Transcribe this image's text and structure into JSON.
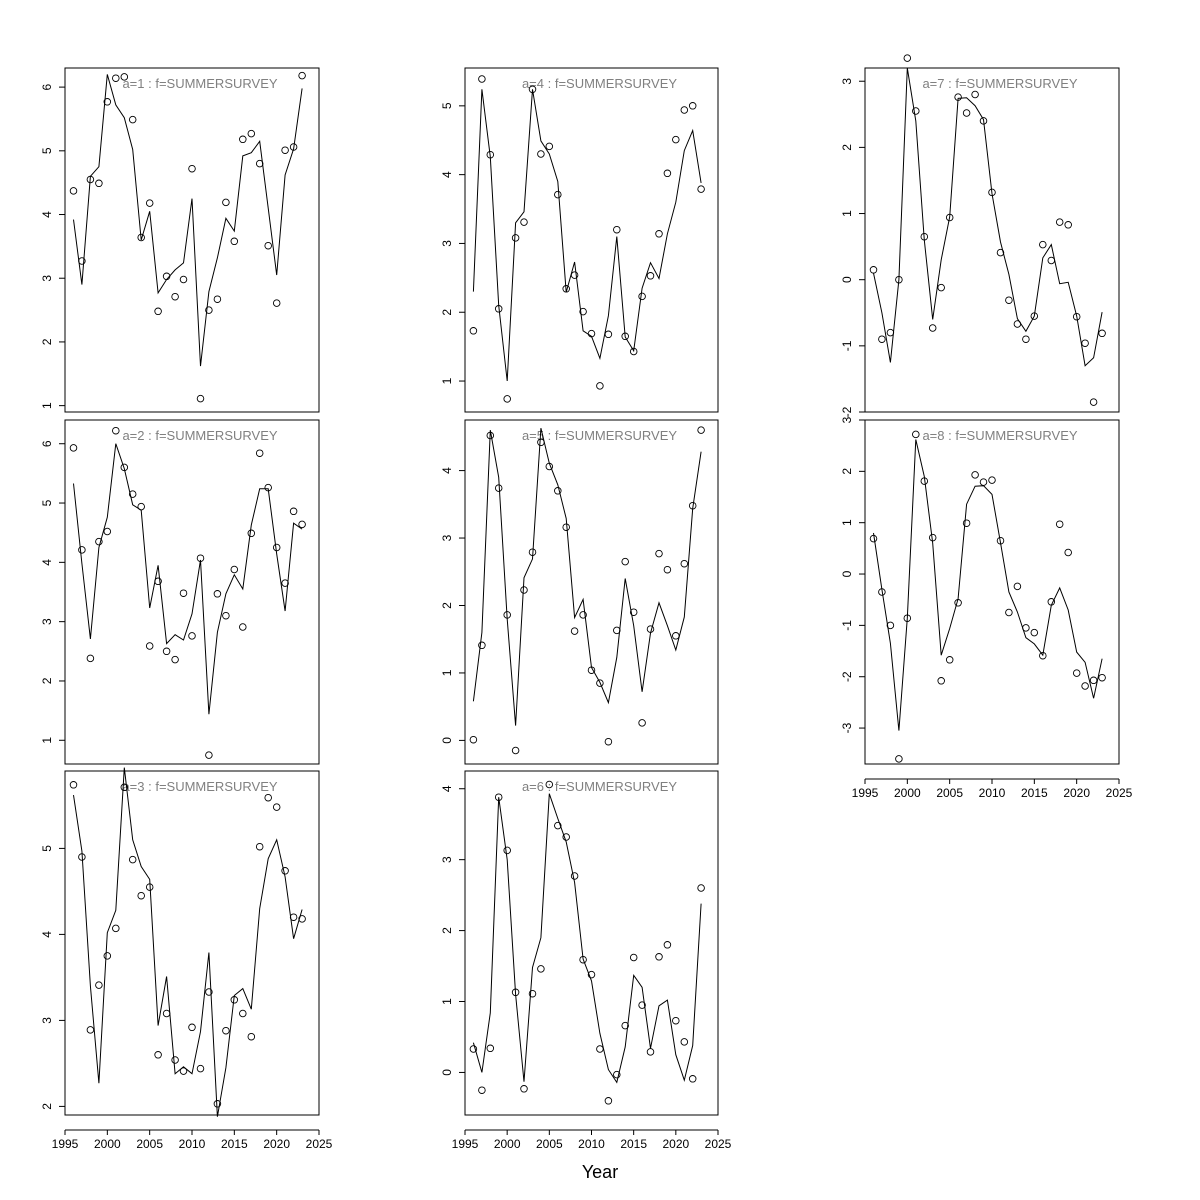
{
  "figure": {
    "xlabel": "Year",
    "colors": {
      "observed": "#000000",
      "fit": "#000000",
      "title": "#808080"
    }
  },
  "chart_data": [
    {
      "type": "scatter",
      "title": "a=1  :  f=SUMMERSURVEY",
      "x": [
        1996,
        1997,
        1998,
        1999,
        2000,
        2001,
        2002,
        2003,
        2004,
        2005,
        2006,
        2007,
        2008,
        2009,
        2010,
        2011,
        2012,
        2013,
        2014,
        2015,
        2016,
        2017,
        2018,
        2019,
        2020,
        2021,
        2022,
        2023
      ],
      "series": [
        {
          "type": "scatter",
          "values": [
            4.37,
            3.27,
            4.55,
            4.49,
            5.77,
            6.14,
            6.16,
            5.49,
            3.64,
            4.18,
            2.48,
            3.03,
            2.71,
            2.98,
            4.72,
            1.11,
            2.5,
            2.67,
            4.19,
            3.58,
            5.18,
            5.27,
            4.8,
            3.51,
            2.61,
            5.01,
            5.06,
            6.18
          ]
        },
        {
          "type": "line",
          "values": [
            3.92,
            2.9,
            4.6,
            4.75,
            6.2,
            5.72,
            5.52,
            5.02,
            3.6,
            4.05,
            2.77,
            2.98,
            3.13,
            3.24,
            4.25,
            1.62,
            2.79,
            3.32,
            3.94,
            3.74,
            4.92,
            4.97,
            5.15,
            4.1,
            3.05,
            4.62,
            5.03,
            5.98
          ]
        }
      ],
      "xlim": [
        1995,
        2025
      ],
      "ylim": [
        0.9,
        6.3
      ],
      "xticks": [
        1995,
        2000,
        2005,
        2010,
        2015,
        2020,
        2025
      ],
      "yticks": [
        1,
        2,
        3,
        4,
        5,
        6
      ],
      "grid": false
    },
    {
      "type": "scatter",
      "title": "a=2  :  f=SUMMERSURVEY",
      "x": [
        1996,
        1997,
        1998,
        1999,
        2000,
        2001,
        2002,
        2003,
        2004,
        2005,
        2006,
        2007,
        2008,
        2009,
        2010,
        2011,
        2012,
        2013,
        2014,
        2015,
        2016,
        2017,
        2018,
        2019,
        2020,
        2021,
        2022,
        2023
      ],
      "series": [
        {
          "type": "scatter",
          "values": [
            5.93,
            4.21,
            2.38,
            4.35,
            4.52,
            6.22,
            5.6,
            5.15,
            4.94,
            2.59,
            3.68,
            2.5,
            2.36,
            3.48,
            2.76,
            4.07,
            0.75,
            3.47,
            3.1,
            3.88,
            2.91,
            4.49,
            5.84,
            5.26,
            4.25,
            3.65,
            4.86,
            4.64
          ]
        },
        {
          "type": "line",
          "values": [
            5.33,
            3.98,
            2.71,
            4.25,
            4.76,
            6.0,
            5.58,
            4.97,
            4.88,
            3.23,
            3.95,
            2.63,
            2.78,
            2.69,
            3.13,
            4.04,
            1.44,
            2.82,
            3.47,
            3.79,
            3.55,
            4.63,
            5.24,
            5.24,
            4.14,
            3.18,
            4.66,
            4.56
          ]
        }
      ],
      "xlim": [
        1995,
        2025
      ],
      "ylim": [
        0.6,
        6.4
      ],
      "xticks": [
        1995,
        2000,
        2005,
        2010,
        2015,
        2020,
        2025
      ],
      "yticks": [
        1,
        2,
        3,
        4,
        5,
        6
      ],
      "grid": false
    },
    {
      "type": "scatter",
      "title": "a=3  :  f=SUMMERSURVEY",
      "x": [
        1996,
        1997,
        1998,
        1999,
        2000,
        2001,
        2002,
        2003,
        2004,
        2005,
        2006,
        2007,
        2008,
        2009,
        2010,
        2011,
        2012,
        2013,
        2014,
        2015,
        2016,
        2017,
        2018,
        2019,
        2020,
        2021,
        2022,
        2023
      ],
      "series": [
        {
          "type": "scatter",
          "values": [
            5.74,
            4.9,
            2.89,
            3.41,
            3.75,
            4.07,
            5.71,
            4.87,
            4.45,
            4.55,
            2.6,
            3.08,
            2.54,
            2.41,
            2.92,
            2.44,
            3.33,
            2.03,
            2.88,
            3.24,
            3.08,
            2.81,
            5.02,
            5.59,
            5.48,
            4.74,
            4.2,
            4.18
          ]
        },
        {
          "type": "line",
          "values": [
            5.62,
            4.97,
            3.4,
            2.27,
            4.02,
            4.28,
            5.94,
            5.1,
            4.79,
            4.64,
            2.94,
            3.51,
            2.38,
            2.46,
            2.38,
            2.87,
            3.79,
            1.88,
            2.45,
            3.29,
            3.37,
            3.13,
            4.3,
            4.88,
            5.1,
            4.67,
            3.95,
            4.29
          ]
        }
      ],
      "xlim": [
        1995,
        2025
      ],
      "ylim": [
        1.9,
        5.9
      ],
      "xticks": [
        1995,
        2000,
        2005,
        2010,
        2015,
        2020,
        2025
      ],
      "yticks": [
        2,
        3,
        4,
        5
      ],
      "grid": false
    },
    {
      "type": "scatter",
      "title": "a=4  :  f=SUMMERSURVEY",
      "x": [
        1996,
        1997,
        1998,
        1999,
        2000,
        2001,
        2002,
        2003,
        2004,
        2005,
        2006,
        2007,
        2008,
        2009,
        2010,
        2011,
        2012,
        2013,
        2014,
        2015,
        2016,
        2017,
        2018,
        2019,
        2020,
        2021,
        2022,
        2023
      ],
      "series": [
        {
          "type": "scatter",
          "values": [
            1.73,
            5.39,
            4.29,
            2.05,
            0.74,
            3.08,
            3.31,
            5.24,
            4.3,
            4.41,
            3.71,
            2.34,
            2.54,
            2.01,
            1.69,
            0.93,
            1.68,
            3.2,
            1.65,
            1.43,
            2.23,
            2.53,
            3.14,
            4.02,
            4.51,
            4.94,
            5.0,
            3.79
          ]
        },
        {
          "type": "line",
          "values": [
            2.3,
            5.24,
            4.26,
            2.1,
            1.0,
            3.3,
            3.46,
            5.24,
            4.49,
            4.3,
            3.9,
            2.29,
            2.73,
            1.73,
            1.65,
            1.33,
            1.95,
            3.1,
            1.64,
            1.44,
            2.35,
            2.72,
            2.49,
            3.14,
            3.6,
            4.35,
            4.64,
            3.88
          ]
        }
      ],
      "xlim": [
        1995,
        2025
      ],
      "ylim": [
        0.55,
        5.55
      ],
      "xticks": [
        1995,
        2000,
        2005,
        2010,
        2015,
        2020,
        2025
      ],
      "yticks": [
        1,
        2,
        3,
        4,
        5
      ],
      "grid": false
    },
    {
      "type": "scatter",
      "title": "a=5  :  f=SUMMERSURVEY",
      "x": [
        1996,
        1997,
        1998,
        1999,
        2000,
        2001,
        2002,
        2003,
        2004,
        2005,
        2006,
        2007,
        2008,
        2009,
        2010,
        2011,
        2012,
        2013,
        2014,
        2015,
        2016,
        2017,
        2018,
        2019,
        2020,
        2021,
        2022,
        2023
      ],
      "series": [
        {
          "type": "scatter",
          "values": [
            0.01,
            1.41,
            4.52,
            3.74,
            1.86,
            -0.15,
            2.23,
            2.79,
            4.42,
            4.06,
            3.7,
            3.16,
            1.62,
            1.86,
            1.04,
            0.85,
            -0.02,
            1.63,
            2.65,
            1.9,
            0.26,
            1.65,
            2.77,
            2.53,
            1.55,
            2.62,
            3.48,
            4.6
          ]
        },
        {
          "type": "line",
          "values": [
            0.58,
            1.6,
            4.6,
            3.9,
            1.8,
            0.22,
            2.41,
            2.69,
            4.63,
            4.11,
            3.79,
            3.29,
            1.82,
            2.09,
            1.08,
            0.86,
            0.56,
            1.23,
            2.4,
            1.7,
            0.72,
            1.59,
            2.04,
            1.7,
            1.34,
            1.83,
            3.44,
            4.28
          ]
        }
      ],
      "xlim": [
        1995,
        2025
      ],
      "ylim": [
        -0.35,
        4.75
      ],
      "xticks": [
        1995,
        2000,
        2005,
        2010,
        2015,
        2020,
        2025
      ],
      "yticks": [
        0,
        1,
        2,
        3,
        4
      ],
      "grid": false
    },
    {
      "type": "scatter",
      "title": "a=6  :  f=SUMMERSURVEY",
      "x": [
        1996,
        1997,
        1998,
        1999,
        2000,
        2001,
        2002,
        2003,
        2004,
        2005,
        2006,
        2007,
        2008,
        2009,
        2010,
        2011,
        2012,
        2013,
        2014,
        2015,
        2016,
        2017,
        2018,
        2019,
        2020,
        2021,
        2022,
        2023
      ],
      "series": [
        {
          "type": "scatter",
          "values": [
            0.33,
            -0.25,
            0.34,
            3.88,
            3.13,
            1.13,
            -0.23,
            1.11,
            1.46,
            4.06,
            3.48,
            3.32,
            2.77,
            1.59,
            1.38,
            0.33,
            -0.4,
            -0.03,
            0.66,
            1.62,
            0.95,
            0.29,
            1.63,
            1.8,
            0.73,
            0.43,
            -0.09,
            2.6
          ]
        },
        {
          "type": "line",
          "values": [
            0.42,
            0.0,
            0.84,
            3.88,
            3.0,
            1.1,
            -0.13,
            1.48,
            1.9,
            3.93,
            3.58,
            3.25,
            2.68,
            1.6,
            1.29,
            0.55,
            0.04,
            -0.14,
            0.36,
            1.37,
            1.2,
            0.34,
            0.94,
            1.02,
            0.25,
            -0.11,
            0.38,
            2.38
          ]
        }
      ],
      "xlim": [
        1995,
        2025
      ],
      "ylim": [
        -0.6,
        4.25
      ],
      "xticks": [
        1995,
        2000,
        2005,
        2010,
        2015,
        2020,
        2025
      ],
      "yticks": [
        0,
        1,
        2,
        3,
        4
      ],
      "grid": false
    },
    {
      "type": "scatter",
      "title": "a=7  :  f=SUMMERSURVEY",
      "x": [
        1996,
        1997,
        1998,
        1999,
        2000,
        2001,
        2002,
        2003,
        2004,
        2005,
        2006,
        2007,
        2008,
        2009,
        2010,
        2011,
        2012,
        2013,
        2014,
        2015,
        2016,
        2017,
        2018,
        2019,
        2020,
        2021,
        2022,
        2023
      ],
      "series": [
        {
          "type": "scatter",
          "values": [
            0.15,
            -0.9,
            -0.8,
            0.0,
            3.35,
            2.55,
            0.65,
            -0.73,
            -0.12,
            0.94,
            2.76,
            2.52,
            2.8,
            2.4,
            1.32,
            0.41,
            -0.31,
            -0.67,
            -0.9,
            -0.55,
            0.53,
            0.29,
            0.87,
            0.83,
            -0.56,
            -0.96,
            -1.85,
            -0.81
          ]
        },
        {
          "type": "line",
          "values": [
            0.1,
            -0.5,
            -1.25,
            0.0,
            3.2,
            2.4,
            0.6,
            -0.6,
            0.3,
            0.95,
            2.74,
            2.75,
            2.63,
            2.42,
            1.3,
            0.57,
            0.08,
            -0.59,
            -0.78,
            -0.55,
            0.33,
            0.53,
            -0.06,
            -0.04,
            -0.55,
            -1.3,
            -1.18,
            -0.49
          ]
        }
      ],
      "xlim": [
        1995,
        2025
      ],
      "ylim": [
        -2.0,
        3.2
      ],
      "xticks": [
        1995,
        2000,
        2005,
        2010,
        2015,
        2020,
        2025
      ],
      "yticks": [
        -2,
        -1,
        0,
        1,
        2,
        3
      ],
      "grid": false
    },
    {
      "type": "scatter",
      "title": "a=8  :  f=SUMMERSURVEY",
      "x": [
        1996,
        1997,
        1998,
        1999,
        2000,
        2001,
        2002,
        2003,
        2004,
        2005,
        2006,
        2007,
        2008,
        2009,
        2010,
        2011,
        2012,
        2013,
        2014,
        2015,
        2016,
        2017,
        2018,
        2019,
        2020,
        2021,
        2022,
        2023
      ],
      "series": [
        {
          "type": "scatter",
          "values": [
            0.69,
            -0.35,
            -1.0,
            -3.6,
            -0.86,
            2.72,
            1.81,
            0.71,
            -2.08,
            -1.67,
            -0.56,
            0.99,
            1.93,
            1.79,
            1.83,
            0.65,
            -0.75,
            -0.24,
            -1.05,
            -1.14,
            -1.59,
            -0.54,
            0.97,
            0.42,
            -1.93,
            -2.18,
            -2.07,
            -2.02
          ]
        },
        {
          "type": "line",
          "values": [
            0.8,
            -0.3,
            -1.35,
            -3.05,
            -0.86,
            2.62,
            1.9,
            0.6,
            -1.58,
            -1.06,
            -0.48,
            1.36,
            1.71,
            1.72,
            1.55,
            0.61,
            -0.35,
            -0.74,
            -1.24,
            -1.36,
            -1.58,
            -0.61,
            -0.27,
            -0.7,
            -1.52,
            -1.72,
            -2.42,
            -1.65
          ]
        }
      ],
      "xlim": [
        1995,
        2025
      ],
      "ylim": [
        -3.7,
        3.0
      ],
      "xticks": [
        1995,
        2000,
        2005,
        2010,
        2015,
        2020,
        2025
      ],
      "yticks": [
        -3,
        -2,
        -1,
        0,
        1,
        2,
        3
      ],
      "grid": false
    }
  ]
}
